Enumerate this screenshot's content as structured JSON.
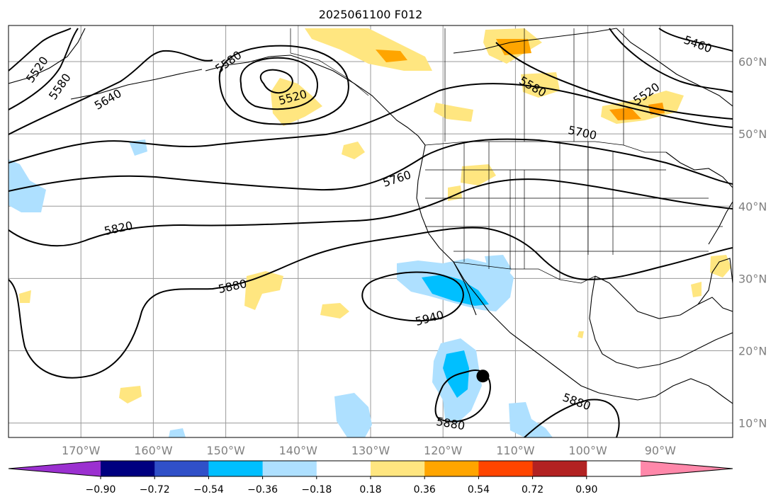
{
  "title": "2025061100 F012",
  "map": {
    "lon_range": [
      -180,
      -80
    ],
    "lat_range": [
      8,
      65
    ],
    "lon_ticks": [
      {
        "value": -170,
        "label": "170°W"
      },
      {
        "value": -160,
        "label": "160°W"
      },
      {
        "value": -150,
        "label": "150°W"
      },
      {
        "value": -140,
        "label": "140°W"
      },
      {
        "value": -130,
        "label": "130°W"
      },
      {
        "value": -120,
        "label": "120°W"
      },
      {
        "value": -110,
        "label": "110°W"
      },
      {
        "value": -100,
        "label": "100°W"
      },
      {
        "value": -90,
        "label": "90°W"
      }
    ],
    "lat_ticks": [
      {
        "value": 10,
        "label": "10°N"
      },
      {
        "value": 20,
        "label": "20°N"
      },
      {
        "value": 30,
        "label": "30°N"
      },
      {
        "value": 40,
        "label": "40°N"
      },
      {
        "value": 50,
        "label": "50°N"
      },
      {
        "value": 60,
        "label": "60°N"
      }
    ],
    "contour_labels": [
      "5460",
      "5520",
      "5580",
      "5640",
      "5700",
      "5760",
      "5820",
      "5880",
      "5940"
    ],
    "marker": {
      "lon": -114.5,
      "lat": 16.5,
      "color": "#000000"
    }
  },
  "colorbar": {
    "colors": [
      "#9b30d0",
      "#000080",
      "#3050c8",
      "#00bfff",
      "#aee0ff",
      "#ffffff",
      "#ffe680",
      "#ffa500",
      "#ff4500",
      "#b22222",
      "#ff88aa"
    ],
    "ticks": [
      "−0.90",
      "−0.72",
      "−0.54",
      "−0.36",
      "−0.18",
      "0.18",
      "0.36",
      "0.54",
      "0.72",
      "0.90"
    ]
  }
}
